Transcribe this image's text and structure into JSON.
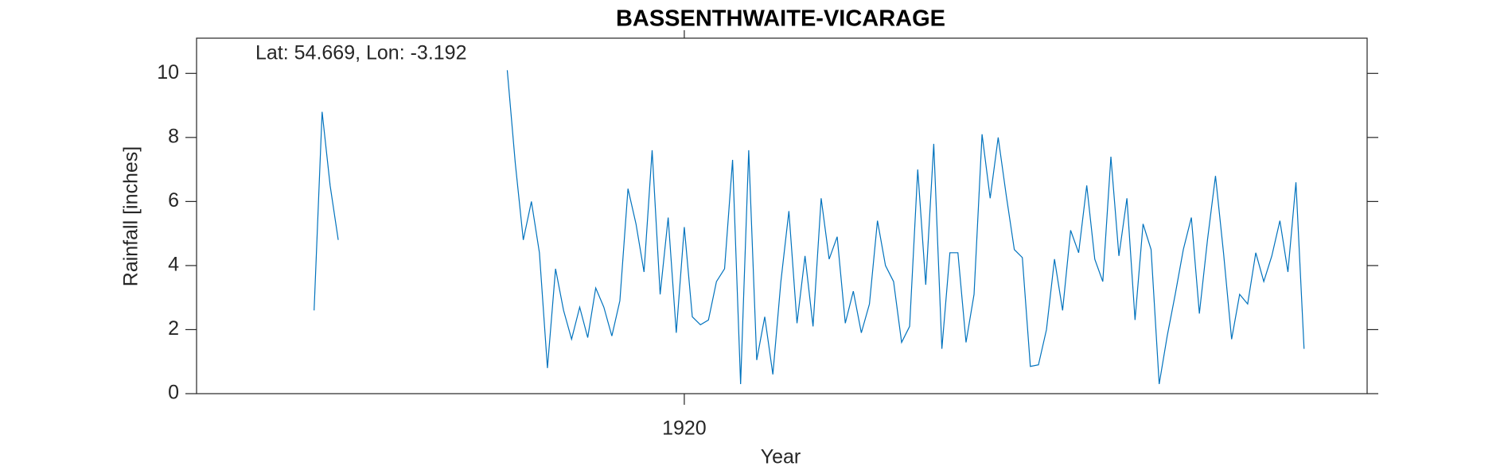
{
  "chart_data": {
    "type": "line",
    "title": "BASSENTHWAITE-VICARAGE",
    "annotation": "Lat: 54.669, Lon: -3.192",
    "x_label": "Year",
    "y_label": "Rainfall [inches]",
    "color": "#0072bd",
    "xlim": [
      1914.95,
      1927.07
    ],
    "xticks": [
      1920
    ],
    "ylim": [
      0,
      11.1
    ],
    "yticks": [
      0,
      2,
      4,
      6,
      8,
      10
    ],
    "x": [
      1916.167,
      1916.25,
      1916.333,
      1916.417,
      1917.0,
      1918.167,
      1918.25,
      1918.333,
      1918.417,
      1918.5,
      1918.583,
      1918.667,
      1918.75,
      1918.833,
      1918.917,
      1919.0,
      1919.083,
      1919.167,
      1919.25,
      1919.333,
      1919.417,
      1919.5,
      1919.583,
      1919.667,
      1919.75,
      1919.833,
      1919.917,
      1920.0,
      1920.083,
      1920.167,
      1920.25,
      1920.333,
      1920.417,
      1920.5,
      1920.583,
      1920.667,
      1920.75,
      1920.833,
      1920.917,
      1921.0,
      1921.083,
      1921.167,
      1921.25,
      1921.333,
      1921.417,
      1921.5,
      1921.583,
      1921.667,
      1921.75,
      1921.833,
      1921.917,
      1922.0,
      1922.083,
      1922.167,
      1922.25,
      1922.333,
      1922.417,
      1922.5,
      1922.583,
      1922.667,
      1922.75,
      1922.833,
      1922.917,
      1923.0,
      1923.083,
      1923.167,
      1923.25,
      1923.333,
      1923.417,
      1923.5,
      1923.583,
      1923.667,
      1923.75,
      1923.833,
      1923.917,
      1924.0,
      1924.083,
      1924.167,
      1924.25,
      1924.333,
      1924.417,
      1924.5,
      1924.583,
      1924.667,
      1924.75,
      1924.833,
      1924.917,
      1925.0,
      1925.083,
      1925.167,
      1925.25,
      1925.333,
      1925.417,
      1925.5,
      1925.583,
      1925.667,
      1925.75,
      1925.833,
      1925.917,
      1926.0,
      1926.083,
      1926.167,
      1926.25,
      1926.333,
      1926.417
    ],
    "values": [
      2.6,
      8.8,
      6.5,
      4.8,
      null,
      10.1,
      7.2,
      4.8,
      6.0,
      4.4,
      0.8,
      3.9,
      2.6,
      1.7,
      2.7,
      1.75,
      3.3,
      2.7,
      1.8,
      2.9,
      6.4,
      5.3,
      3.8,
      7.6,
      3.1,
      5.5,
      1.9,
      5.2,
      2.4,
      2.15,
      2.3,
      3.5,
      3.9,
      7.3,
      0.3,
      7.6,
      1.05,
      2.4,
      0.6,
      3.5,
      5.7,
      2.2,
      4.3,
      2.1,
      6.1,
      4.2,
      4.9,
      2.2,
      3.2,
      1.9,
      2.8,
      5.4,
      4.0,
      3.5,
      1.6,
      2.1,
      7.0,
      3.4,
      7.8,
      1.4,
      4.4,
      4.4,
      1.6,
      3.1,
      8.1,
      6.1,
      8.0,
      6.2,
      4.5,
      4.25,
      0.85,
      0.9,
      2.0,
      4.2,
      2.6,
      5.1,
      4.4,
      6.5,
      4.2,
      3.5,
      7.4,
      4.3,
      6.1,
      2.3,
      5.3,
      4.5,
      0.3,
      1.8,
      3.1,
      4.5,
      5.5,
      2.5,
      4.8,
      6.8,
      4.4,
      1.7,
      3.1,
      2.8,
      4.4,
      3.5,
      4.3,
      5.4,
      3.8,
      6.6,
      1.4
    ]
  }
}
